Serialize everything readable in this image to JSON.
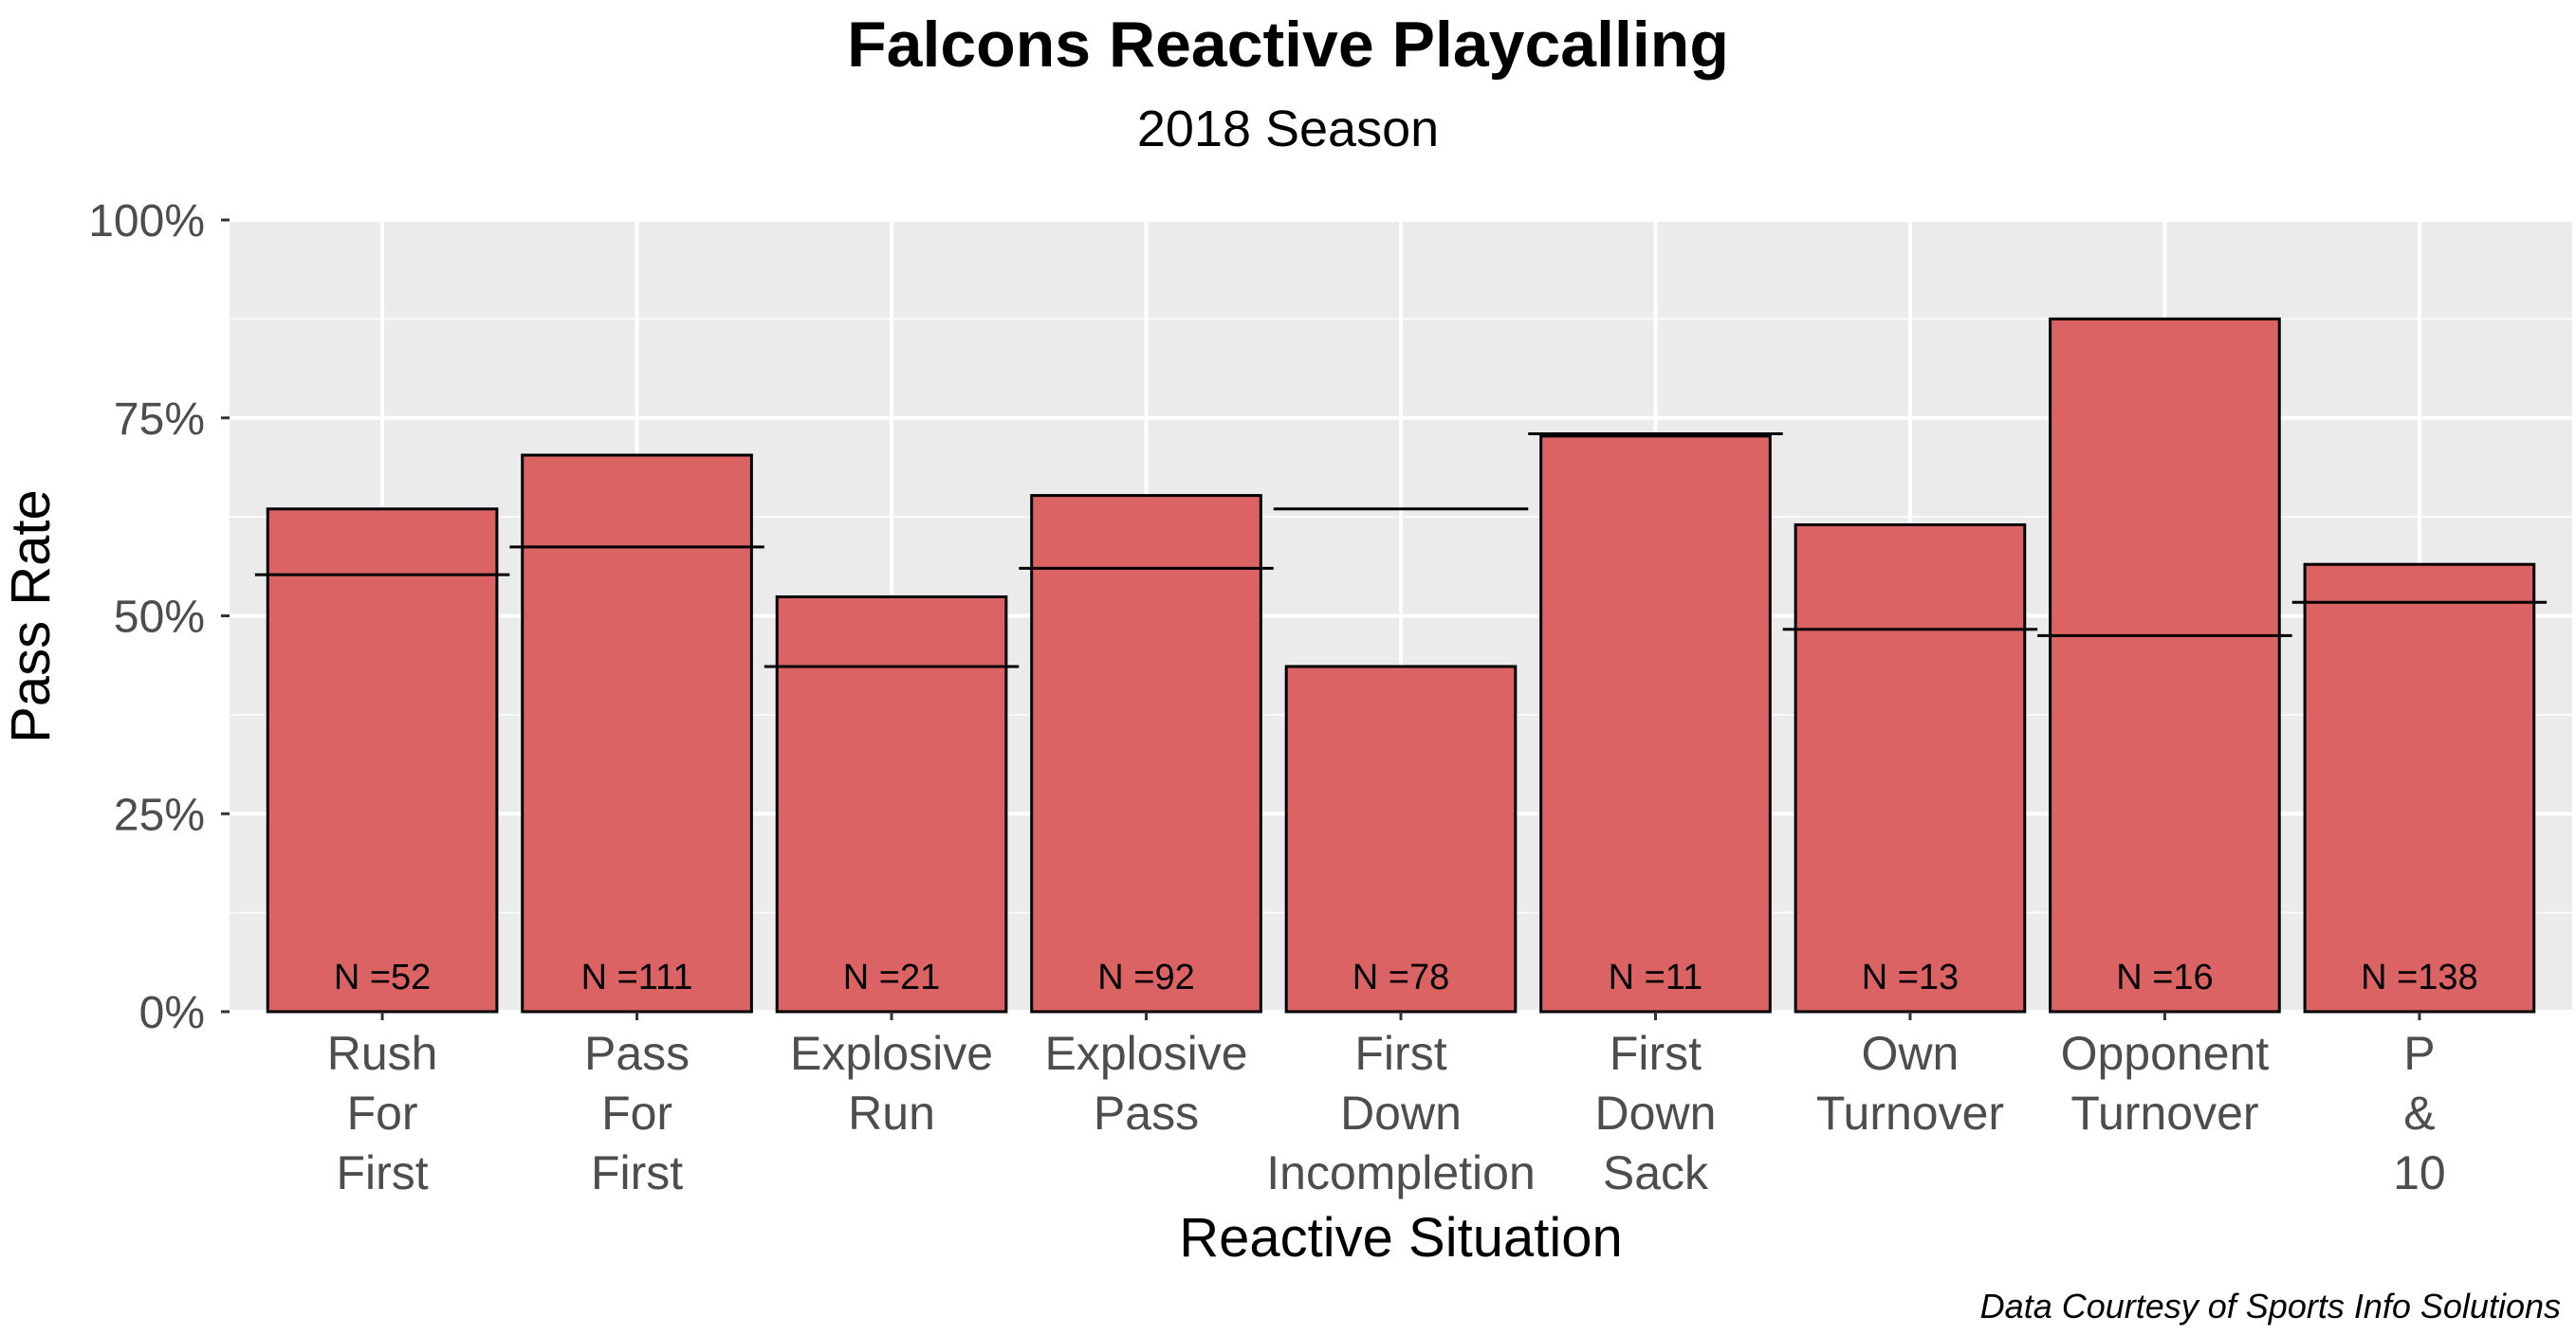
{
  "chart_data": {
    "type": "bar",
    "title": "Falcons Reactive Playcalling",
    "subtitle": "2018 Season",
    "xlabel": "Reactive Situation",
    "ylabel": "Pass Rate",
    "caption": "Data Courtesy of Sports Info Solutions",
    "ylim": [
      0,
      1
    ],
    "yticks": [
      0,
      0.25,
      0.5,
      0.75,
      1
    ],
    "ytick_labels": [
      "0%",
      "25%",
      "50%",
      "75%",
      "100%"
    ],
    "grid": true,
    "categories": [
      [
        "Rush",
        "For",
        "First"
      ],
      [
        "Pass",
        "For",
        "First"
      ],
      [
        "Explosive",
        "Run"
      ],
      [
        "Explosive",
        "Pass"
      ],
      [
        "First",
        "Down",
        "Incompletion"
      ],
      [
        "First",
        "Down",
        "Sack"
      ],
      [
        "Own",
        "Turnover"
      ],
      [
        "Opponent",
        "Turnover"
      ],
      [
        "P",
        "&",
        "10"
      ]
    ],
    "series": [
      {
        "name": "Falcons pass rate",
        "values": [
          0.635,
          0.703,
          0.524,
          0.652,
          0.436,
          0.727,
          0.615,
          0.875,
          0.565
        ]
      },
      {
        "name": "Reference pass rate",
        "values": [
          0.552,
          0.587,
          0.436,
          0.56,
          0.635,
          0.73,
          0.483,
          0.475,
          0.517
        ]
      }
    ],
    "n_labels": [
      "N =52",
      "N =111",
      "N =21",
      "N =92",
      "N =78",
      "N =11",
      "N =13",
      "N =16",
      "N =138"
    ],
    "colors": {
      "bar": "#DA5E5E",
      "panel": "#EBEBEB",
      "grid": "#FFFFFF",
      "text": "#4D4D4D"
    }
  }
}
